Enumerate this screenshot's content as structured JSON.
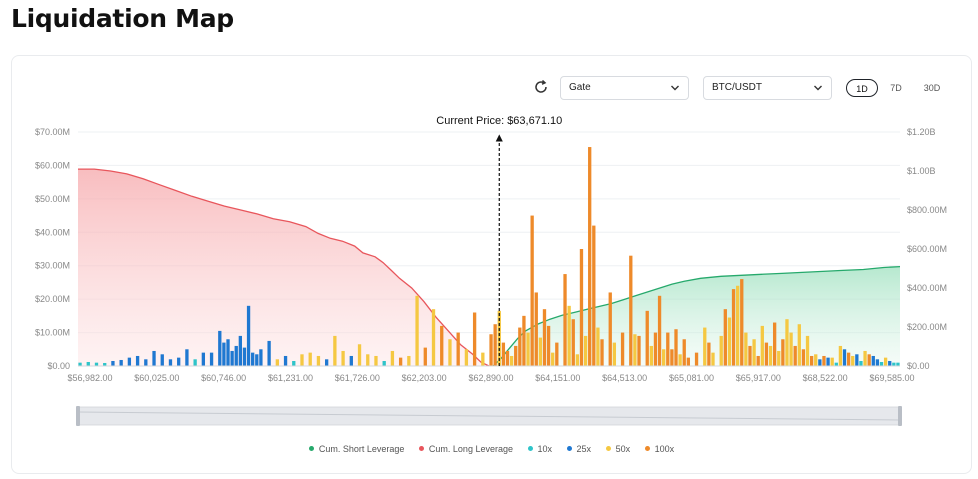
{
  "page": {
    "title": "Liquidation Map"
  },
  "toolbar": {
    "exchange": "Gate",
    "pair": "BTC/USDT",
    "timeframes": [
      "1D",
      "7D",
      "30D"
    ],
    "active_timeframe": "1D"
  },
  "chart_data": {
    "type": "bar",
    "annotation": "Current Price: $63,671.10",
    "current_price": 63671.1,
    "left_axis_ticks": [
      "$0.00",
      "$10.00M",
      "$20.00M",
      "$30.00M",
      "$40.00M",
      "$50.00M",
      "$60.00M",
      "$70.00M"
    ],
    "right_axis_ticks": [
      "$0.00",
      "$200.00M",
      "$400.00M",
      "$600.00M",
      "$800.00M",
      "$1.00B",
      "$1.20B"
    ],
    "left_ylim": [
      0,
      70000000
    ],
    "right_ylim": [
      0,
      1200000000
    ],
    "x_tick_labels": [
      "$56,982.00",
      "$60,025.00",
      "$60,746.00",
      "$61,231.00",
      "$61,726.00",
      "$62,203.00",
      "$62,890.00",
      "$64,151.00",
      "$64,513.00",
      "$65,081.00",
      "$65,917.00",
      "$68,522.00",
      "$69,585.00"
    ],
    "bin_count": 200,
    "current_price_bin": 102,
    "series_colors": {
      "cum_short": "#26a96c",
      "cum_long": "#e8565c",
      "10x": "#2ec4c9",
      "25x": "#1f78d1",
      "50x": "#f5c842",
      "100x": "#ee8a2a"
    },
    "bars": [
      {
        "bin": 0,
        "leverage": "10x",
        "value": 1000000
      },
      {
        "bin": 2,
        "leverage": "10x",
        "value": 1200000
      },
      {
        "bin": 4,
        "leverage": "10x",
        "value": 1000000
      },
      {
        "bin": 6,
        "leverage": "10x",
        "value": 900000
      },
      {
        "bin": 8,
        "leverage": "25x",
        "value": 1500000
      },
      {
        "bin": 10,
        "leverage": "25x",
        "value": 1800000
      },
      {
        "bin": 12,
        "leverage": "25x",
        "value": 2500000
      },
      {
        "bin": 14,
        "leverage": "25x",
        "value": 3000000
      },
      {
        "bin": 16,
        "leverage": "25x",
        "value": 2000000
      },
      {
        "bin": 18,
        "leverage": "25x",
        "value": 4500000
      },
      {
        "bin": 20,
        "leverage": "25x",
        "value": 3500000
      },
      {
        "bin": 22,
        "leverage": "25x",
        "value": 2000000
      },
      {
        "bin": 24,
        "leverage": "25x",
        "value": 2500000
      },
      {
        "bin": 26,
        "leverage": "25x",
        "value": 5000000
      },
      {
        "bin": 28,
        "leverage": "10x",
        "value": 2000000
      },
      {
        "bin": 30,
        "leverage": "25x",
        "value": 4000000
      },
      {
        "bin": 32,
        "leverage": "25x",
        "value": 4000000
      },
      {
        "bin": 34,
        "leverage": "25x",
        "value": 10500000
      },
      {
        "bin": 35,
        "leverage": "25x",
        "value": 7000000
      },
      {
        "bin": 36,
        "leverage": "25x",
        "value": 8000000
      },
      {
        "bin": 37,
        "leverage": "25x",
        "value": 4500000
      },
      {
        "bin": 38,
        "leverage": "25x",
        "value": 6000000
      },
      {
        "bin": 39,
        "leverage": "25x",
        "value": 9000000
      },
      {
        "bin": 40,
        "leverage": "25x",
        "value": 5500000
      },
      {
        "bin": 41,
        "leverage": "25x",
        "value": 18000000
      },
      {
        "bin": 42,
        "leverage": "25x",
        "value": 4000000
      },
      {
        "bin": 43,
        "leverage": "25x",
        "value": 3500000
      },
      {
        "bin": 44,
        "leverage": "25x",
        "value": 5000000
      },
      {
        "bin": 46,
        "leverage": "25x",
        "value": 7500000
      },
      {
        "bin": 48,
        "leverage": "50x",
        "value": 2000000
      },
      {
        "bin": 50,
        "leverage": "25x",
        "value": 3000000
      },
      {
        "bin": 52,
        "leverage": "10x",
        "value": 1500000
      },
      {
        "bin": 54,
        "leverage": "50x",
        "value": 3500000
      },
      {
        "bin": 56,
        "leverage": "50x",
        "value": 4000000
      },
      {
        "bin": 58,
        "leverage": "50x",
        "value": 3000000
      },
      {
        "bin": 60,
        "leverage": "25x",
        "value": 2000000
      },
      {
        "bin": 62,
        "leverage": "50x",
        "value": 9000000
      },
      {
        "bin": 64,
        "leverage": "50x",
        "value": 4500000
      },
      {
        "bin": 66,
        "leverage": "25x",
        "value": 3000000
      },
      {
        "bin": 68,
        "leverage": "50x",
        "value": 6500000
      },
      {
        "bin": 70,
        "leverage": "50x",
        "value": 3500000
      },
      {
        "bin": 72,
        "leverage": "50x",
        "value": 3000000
      },
      {
        "bin": 74,
        "leverage": "10x",
        "value": 1500000
      },
      {
        "bin": 76,
        "leverage": "50x",
        "value": 4500000
      },
      {
        "bin": 78,
        "leverage": "100x",
        "value": 2500000
      },
      {
        "bin": 80,
        "leverage": "50x",
        "value": 3000000
      },
      {
        "bin": 82,
        "leverage": "50x",
        "value": 21000000
      },
      {
        "bin": 84,
        "leverage": "100x",
        "value": 5500000
      },
      {
        "bin": 86,
        "leverage": "50x",
        "value": 17000000
      },
      {
        "bin": 88,
        "leverage": "100x",
        "value": 12000000
      },
      {
        "bin": 90,
        "leverage": "50x",
        "value": 8000000
      },
      {
        "bin": 92,
        "leverage": "100x",
        "value": 10000000
      },
      {
        "bin": 94,
        "leverage": "50x",
        "value": 5000000
      },
      {
        "bin": 96,
        "leverage": "100x",
        "value": 16000000
      },
      {
        "bin": 98,
        "leverage": "50x",
        "value": 4000000
      },
      {
        "bin": 100,
        "leverage": "100x",
        "value": 9500000
      },
      {
        "bin": 101,
        "leverage": "100x",
        "value": 12500000
      },
      {
        "bin": 102,
        "leverage": "50x",
        "value": 16500000
      },
      {
        "bin": 103,
        "leverage": "100x",
        "value": 7000000
      },
      {
        "bin": 104,
        "leverage": "100x",
        "value": 4500000
      },
      {
        "bin": 105,
        "leverage": "50x",
        "value": 3000000
      },
      {
        "bin": 106,
        "leverage": "100x",
        "value": 6000000
      },
      {
        "bin": 107,
        "leverage": "100x",
        "value": 11500000
      },
      {
        "bin": 108,
        "leverage": "100x",
        "value": 15000000
      },
      {
        "bin": 109,
        "leverage": "50x",
        "value": 10000000
      },
      {
        "bin": 110,
        "leverage": "100x",
        "value": 45000000
      },
      {
        "bin": 111,
        "leverage": "100x",
        "value": 22000000
      },
      {
        "bin": 112,
        "leverage": "50x",
        "value": 8500000
      },
      {
        "bin": 113,
        "leverage": "100x",
        "value": 17000000
      },
      {
        "bin": 114,
        "leverage": "100x",
        "value": 12000000
      },
      {
        "bin": 115,
        "leverage": "50x",
        "value": 4000000
      },
      {
        "bin": 116,
        "leverage": "100x",
        "value": 7000000
      },
      {
        "bin": 118,
        "leverage": "100x",
        "value": 27500000
      },
      {
        "bin": 119,
        "leverage": "50x",
        "value": 18000000
      },
      {
        "bin": 120,
        "leverage": "100x",
        "value": 14000000
      },
      {
        "bin": 121,
        "leverage": "50x",
        "value": 3500000
      },
      {
        "bin": 122,
        "leverage": "100x",
        "value": 35000000
      },
      {
        "bin": 123,
        "leverage": "50x",
        "value": 9000000
      },
      {
        "bin": 124,
        "leverage": "100x",
        "value": 65500000
      },
      {
        "bin": 125,
        "leverage": "100x",
        "value": 42000000
      },
      {
        "bin": 126,
        "leverage": "50x",
        "value": 11500000
      },
      {
        "bin": 127,
        "leverage": "100x",
        "value": 8000000
      },
      {
        "bin": 129,
        "leverage": "100x",
        "value": 22000000
      },
      {
        "bin": 130,
        "leverage": "50x",
        "value": 7000000
      },
      {
        "bin": 132,
        "leverage": "100x",
        "value": 10000000
      },
      {
        "bin": 134,
        "leverage": "100x",
        "value": 33000000
      },
      {
        "bin": 135,
        "leverage": "50x",
        "value": 9500000
      },
      {
        "bin": 136,
        "leverage": "100x",
        "value": 9000000
      },
      {
        "bin": 138,
        "leverage": "100x",
        "value": 16500000
      },
      {
        "bin": 139,
        "leverage": "50x",
        "value": 6000000
      },
      {
        "bin": 140,
        "leverage": "100x",
        "value": 10000000
      },
      {
        "bin": 141,
        "leverage": "100x",
        "value": 21000000
      },
      {
        "bin": 142,
        "leverage": "50x",
        "value": 5000000
      },
      {
        "bin": 143,
        "leverage": "100x",
        "value": 10000000
      },
      {
        "bin": 144,
        "leverage": "100x",
        "value": 5000000
      },
      {
        "bin": 145,
        "leverage": "100x",
        "value": 11000000
      },
      {
        "bin": 146,
        "leverage": "50x",
        "value": 3500000
      },
      {
        "bin": 147,
        "leverage": "100x",
        "value": 8000000
      },
      {
        "bin": 148,
        "leverage": "100x",
        "value": 2500000
      },
      {
        "bin": 150,
        "leverage": "100x",
        "value": 4000000
      },
      {
        "bin": 152,
        "leverage": "50x",
        "value": 11500000
      },
      {
        "bin": 153,
        "leverage": "100x",
        "value": 7000000
      },
      {
        "bin": 154,
        "leverage": "50x",
        "value": 4000000
      },
      {
        "bin": 156,
        "leverage": "50x",
        "value": 9000000
      },
      {
        "bin": 157,
        "leverage": "100x",
        "value": 17000000
      },
      {
        "bin": 158,
        "leverage": "50x",
        "value": 14500000
      },
      {
        "bin": 159,
        "leverage": "100x",
        "value": 23000000
      },
      {
        "bin": 160,
        "leverage": "50x",
        "value": 24000000
      },
      {
        "bin": 161,
        "leverage": "100x",
        "value": 26000000
      },
      {
        "bin": 162,
        "leverage": "50x",
        "value": 10000000
      },
      {
        "bin": 163,
        "leverage": "100x",
        "value": 6000000
      },
      {
        "bin": 164,
        "leverage": "50x",
        "value": 8000000
      },
      {
        "bin": 165,
        "leverage": "100x",
        "value": 3000000
      },
      {
        "bin": 166,
        "leverage": "50x",
        "value": 12000000
      },
      {
        "bin": 167,
        "leverage": "100x",
        "value": 7000000
      },
      {
        "bin": 168,
        "leverage": "50x",
        "value": 6000000
      },
      {
        "bin": 169,
        "leverage": "100x",
        "value": 13000000
      },
      {
        "bin": 170,
        "leverage": "50x",
        "value": 4500000
      },
      {
        "bin": 171,
        "leverage": "100x",
        "value": 8000000
      },
      {
        "bin": 172,
        "leverage": "50x",
        "value": 14000000
      },
      {
        "bin": 173,
        "leverage": "50x",
        "value": 10000000
      },
      {
        "bin": 174,
        "leverage": "100x",
        "value": 6000000
      },
      {
        "bin": 175,
        "leverage": "50x",
        "value": 12500000
      },
      {
        "bin": 176,
        "leverage": "100x",
        "value": 5000000
      },
      {
        "bin": 177,
        "leverage": "50x",
        "value": 9000000
      },
      {
        "bin": 178,
        "leverage": "100x",
        "value": 3000000
      },
      {
        "bin": 179,
        "leverage": "50x",
        "value": 3500000
      },
      {
        "bin": 180,
        "leverage": "25x",
        "value": 2000000
      },
      {
        "bin": 181,
        "leverage": "100x",
        "value": 3000000
      },
      {
        "bin": 182,
        "leverage": "25x",
        "value": 2500000
      },
      {
        "bin": 183,
        "leverage": "50x",
        "value": 2500000
      },
      {
        "bin": 184,
        "leverage": "10x",
        "value": 1000000
      },
      {
        "bin": 185,
        "leverage": "50x",
        "value": 6000000
      },
      {
        "bin": 186,
        "leverage": "25x",
        "value": 5000000
      },
      {
        "bin": 187,
        "leverage": "100x",
        "value": 4000000
      },
      {
        "bin": 188,
        "leverage": "50x",
        "value": 3000000
      },
      {
        "bin": 189,
        "leverage": "25x",
        "value": 3500000
      },
      {
        "bin": 190,
        "leverage": "10x",
        "value": 1500000
      },
      {
        "bin": 191,
        "leverage": "50x",
        "value": 4500000
      },
      {
        "bin": 192,
        "leverage": "100x",
        "value": 3500000
      },
      {
        "bin": 193,
        "leverage": "25x",
        "value": 3000000
      },
      {
        "bin": 194,
        "leverage": "25x",
        "value": 2000000
      },
      {
        "bin": 195,
        "leverage": "10x",
        "value": 1200000
      },
      {
        "bin": 196,
        "leverage": "50x",
        "value": 2500000
      },
      {
        "bin": 197,
        "leverage": "25x",
        "value": 1500000
      },
      {
        "bin": 198,
        "leverage": "10x",
        "value": 1000000
      },
      {
        "bin": 199,
        "leverage": "10x",
        "value": 1000000
      }
    ],
    "cum_long": {
      "axis": "right",
      "points": [
        [
          0,
          1010000000
        ],
        [
          8,
          1010000000
        ],
        [
          16,
          1000000000
        ],
        [
          24,
          985000000
        ],
        [
          32,
          960000000
        ],
        [
          40,
          930000000
        ],
        [
          48,
          900000000
        ],
        [
          56,
          870000000
        ],
        [
          64,
          845000000
        ],
        [
          72,
          820000000
        ],
        [
          80,
          800000000
        ],
        [
          88,
          780000000
        ],
        [
          96,
          755000000
        ],
        [
          104,
          740000000
        ],
        [
          112,
          715000000
        ],
        [
          118,
          680000000
        ],
        [
          124,
          655000000
        ],
        [
          130,
          640000000
        ],
        [
          136,
          615000000
        ],
        [
          140,
          580000000
        ],
        [
          146,
          560000000
        ],
        [
          150,
          530000000
        ],
        [
          154,
          490000000
        ],
        [
          158,
          450000000
        ],
        [
          164,
          400000000
        ],
        [
          170,
          330000000
        ],
        [
          176,
          250000000
        ],
        [
          182,
          180000000
        ],
        [
          188,
          110000000
        ],
        [
          194,
          60000000
        ],
        [
          198,
          20000000
        ],
        [
          202,
          0
        ]
      ]
    },
    "cum_short": {
      "axis": "right",
      "points": [
        [
          204,
          0
        ],
        [
          208,
          40000000
        ],
        [
          212,
          90000000
        ],
        [
          216,
          140000000
        ],
        [
          220,
          180000000
        ],
        [
          226,
          215000000
        ],
        [
          232,
          240000000
        ],
        [
          238,
          260000000
        ],
        [
          244,
          275000000
        ],
        [
          250,
          290000000
        ],
        [
          256,
          305000000
        ],
        [
          262,
          320000000
        ],
        [
          268,
          340000000
        ],
        [
          274,
          360000000
        ],
        [
          280,
          380000000
        ],
        [
          286,
          400000000
        ],
        [
          292,
          420000000
        ],
        [
          298,
          435000000
        ],
        [
          306,
          450000000
        ],
        [
          316,
          460000000
        ],
        [
          326,
          465000000
        ],
        [
          336,
          470000000
        ],
        [
          346,
          475000000
        ],
        [
          356,
          480000000
        ],
        [
          366,
          485000000
        ],
        [
          376,
          490000000
        ],
        [
          386,
          495000000
        ],
        [
          396,
          505000000
        ],
        [
          404,
          510000000
        ]
      ]
    },
    "legend": [
      {
        "label": "Cum. Short Leverage",
        "key": "cum_short"
      },
      {
        "label": "Cum. Long Leverage",
        "key": "cum_long"
      },
      {
        "label": "10x",
        "key": "10x"
      },
      {
        "label": "25x",
        "key": "25x"
      },
      {
        "label": "50x",
        "key": "50x"
      },
      {
        "label": "100x",
        "key": "100x"
      }
    ]
  }
}
